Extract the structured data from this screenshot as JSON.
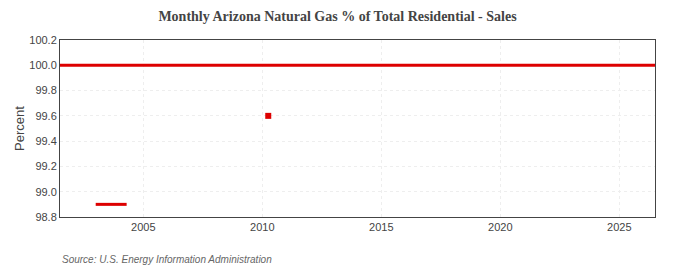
{
  "chart_data": {
    "type": "line",
    "title": "Monthly Arizona Natural Gas % of Total Residential - Sales",
    "ylabel": "Percent",
    "annotations": [
      "Source: U.S. Energy Information Administration"
    ],
    "series": [
      {
        "x": [
          2001.5,
          2026.5
        ],
        "values": [
          100.0,
          100.0
        ],
        "color": "#dd0000",
        "line_style": "solid",
        "marker": "none"
      },
      {
        "x": [
          2003.0,
          2004.3
        ],
        "values": [
          98.9,
          98.9
        ],
        "color": "#dd0000",
        "line_style": "solid",
        "marker": "none"
      },
      {
        "x": [
          2010.25
        ],
        "values": [
          99.6
        ],
        "color": "#dd0000",
        "line_style": "none",
        "marker": "square"
      }
    ],
    "xlim": [
      2001.5,
      2026.5
    ],
    "xticks": [
      2005,
      2010,
      2015,
      2020,
      2025
    ],
    "ylim": [
      98.8,
      100.2
    ],
    "yticks": [
      98.8,
      {
        "value": 99.0,
        "label": "99.0"
      },
      99.2,
      99.4,
      99.6,
      99.8,
      {
        "value": 100.0,
        "label": "100.0"
      },
      100.2
    ],
    "grid": true
  }
}
